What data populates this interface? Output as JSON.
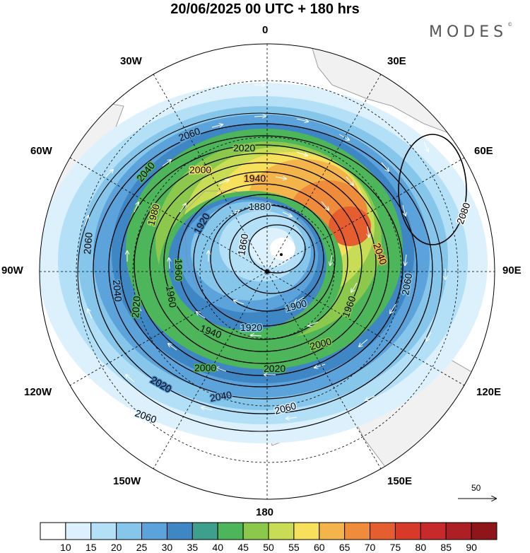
{
  "title": "20/06/2025  00 UTC  + 180 hrs",
  "logo": {
    "text": "MODES",
    "mark": "©"
  },
  "longitude_labels": {
    "lon_0": "0",
    "lon_30E": "30E",
    "lon_60E": "60E",
    "lon_90E": "90E",
    "lon_120E": "120E",
    "lon_150E": "150E",
    "lon_180": "180",
    "lon_150W": "150W",
    "lon_120W": "120W",
    "lon_90W": "90W",
    "lon_60W": "60W",
    "lon_30W": "30W"
  },
  "reference_vector": {
    "label": "50"
  },
  "colorbar": {
    "labels": [
      "10",
      "15",
      "20",
      "25",
      "30",
      "35",
      "40",
      "45",
      "50",
      "55",
      "60",
      "65",
      "70",
      "75",
      "80",
      "85",
      "90"
    ],
    "colors": [
      "#ffffff",
      "#dcf1fb",
      "#b4e0f7",
      "#86c6ea",
      "#5ba3da",
      "#3f86c4",
      "#3ea08c",
      "#4db55a",
      "#8cc84b",
      "#c9dc56",
      "#f7e15c",
      "#f3b44b",
      "#ee8c3c",
      "#e45e2f",
      "#d83a2a",
      "#c62a2a",
      "#ac1f24",
      "#8e161b"
    ]
  },
  "contours": {
    "c1860": "1860",
    "c1880": "1880",
    "c1900": "1900",
    "c1920": "1920",
    "c1940": "1940",
    "c1960": "1960",
    "c1980": "1980",
    "c2000": "2000",
    "c2020": "2020",
    "c2040": "2040",
    "c2060": "2060",
    "c2080": "2080"
  },
  "map_style": {
    "projection": "south-polar-stereographic",
    "land_color": "#f1f1f1",
    "coast_color": "#888888",
    "grid": "dashed"
  }
}
